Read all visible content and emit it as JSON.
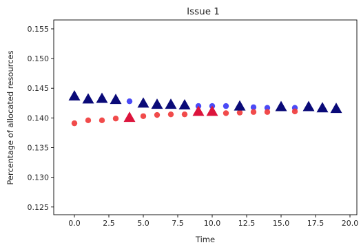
{
  "chart_data": {
    "type": "scatter",
    "title": "Issue 1",
    "xlabel": "Time",
    "ylabel": "Percentage of allocated resources",
    "xlim": [
      -1.5,
      20.5
    ],
    "ylim": [
      0.1237,
      0.1565
    ],
    "xticks": [
      0.0,
      2.5,
      5.0,
      7.5,
      10.0,
      12.5,
      15.0,
      17.5,
      20.0
    ],
    "xtick_labels": [
      "0.0",
      "2.5",
      "5.0",
      "7.5",
      "10.0",
      "12.5",
      "15.0",
      "17.5",
      "20.0"
    ],
    "yticks": [
      0.125,
      0.13,
      0.135,
      0.14,
      0.145,
      0.15,
      0.155
    ],
    "ytick_labels": [
      "0.125",
      "0.130",
      "0.135",
      "0.140",
      "0.145",
      "0.150",
      "0.155"
    ],
    "grid": false,
    "series": [
      {
        "marker": "circle",
        "color": "#3b3bf5",
        "x": [
          4,
          9,
          10,
          11,
          13,
          14,
          16
        ],
        "y": [
          0.1428,
          0.142,
          0.142,
          0.142,
          0.1418,
          0.1417,
          0.1417
        ]
      },
      {
        "marker": "circle",
        "color": "#f03c3c",
        "x": [
          0,
          1,
          2,
          3,
          5,
          6,
          7,
          8,
          11,
          12,
          13,
          14,
          16
        ],
        "y": [
          0.1391,
          0.1396,
          0.1396,
          0.1399,
          0.1403,
          0.1405,
          0.1406,
          0.1406,
          0.1408,
          0.1409,
          0.141,
          0.141,
          0.1411
        ]
      },
      {
        "marker": "triangle",
        "color": "#dc143c",
        "x": [
          4,
          9,
          10
        ],
        "y": [
          0.14,
          0.141,
          0.141
        ]
      },
      {
        "marker": "triangle",
        "color": "#0a0a78",
        "x": [
          0,
          1,
          2,
          3,
          5,
          6,
          7,
          8,
          12,
          15,
          17,
          18,
          19
        ],
        "y": [
          0.1436,
          0.1431,
          0.1432,
          0.143,
          0.1424,
          0.1422,
          0.1422,
          0.1421,
          0.1419,
          0.1418,
          0.1418,
          0.1416,
          0.1415
        ]
      }
    ]
  }
}
